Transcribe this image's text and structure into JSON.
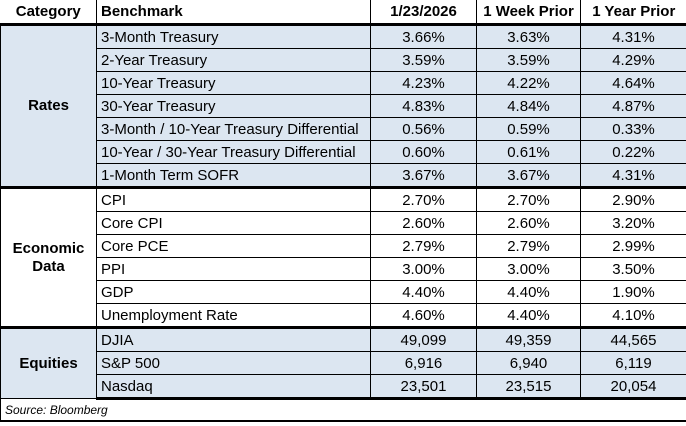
{
  "table": {
    "headers": [
      "Category",
      "Benchmark",
      "1/23/2026",
      "1 Week Prior",
      "1 Year Prior"
    ],
    "sections": [
      {
        "category": "Rates",
        "rows": [
          {
            "name": "3-Month Treasury",
            "current": "3.66%",
            "week": "3.63%",
            "year": "4.31%"
          },
          {
            "name": "2-Year Treasury",
            "current": "3.59%",
            "week": "3.59%",
            "year": "4.29%"
          },
          {
            "name": "10-Year Treasury",
            "current": "4.23%",
            "week": "4.22%",
            "year": "4.64%"
          },
          {
            "name": "30-Year Treasury",
            "current": "4.83%",
            "week": "4.84%",
            "year": "4.87%"
          },
          {
            "name": "3-Month / 10-Year Treasury Differential",
            "current": "0.56%",
            "week": "0.59%",
            "year": "0.33%"
          },
          {
            "name": "10-Year / 30-Year Treasury Differential",
            "current": "0.60%",
            "week": "0.61%",
            "year": "0.22%"
          },
          {
            "name": "1-Month Term SOFR",
            "current": "3.67%",
            "week": "3.67%",
            "year": "4.31%"
          }
        ]
      },
      {
        "category": "Economic Data",
        "rows": [
          {
            "name": "CPI",
            "current": "2.70%",
            "week": "2.70%",
            "year": "2.90%"
          },
          {
            "name": "Core CPI",
            "current": "2.60%",
            "week": "2.60%",
            "year": "3.20%"
          },
          {
            "name": "Core PCE",
            "current": "2.79%",
            "week": "2.79%",
            "year": "2.99%"
          },
          {
            "name": "PPI",
            "current": "3.00%",
            "week": "3.00%",
            "year": "3.50%"
          },
          {
            "name": "GDP",
            "current": "4.40%",
            "week": "4.40%",
            "year": "1.90%"
          },
          {
            "name": "Unemployment Rate",
            "current": "4.60%",
            "week": "4.40%",
            "year": "4.10%"
          }
        ]
      },
      {
        "category": "Equities",
        "rows": [
          {
            "name": "DJIA",
            "current": "49,099",
            "week": "49,359",
            "year": "44,565"
          },
          {
            "name": "S&P 500",
            "current": "6,916",
            "week": "6,940",
            "year": "6,119"
          },
          {
            "name": "Nasdaq",
            "current": "23,501",
            "week": "23,515",
            "year": "20,054"
          }
        ]
      }
    ],
    "source": "Source: Bloomberg"
  },
  "colors": {
    "section_fill_blue": "#dce6f1",
    "section_fill_white": "#ffffff",
    "border": "#000000",
    "text": "#000000"
  }
}
